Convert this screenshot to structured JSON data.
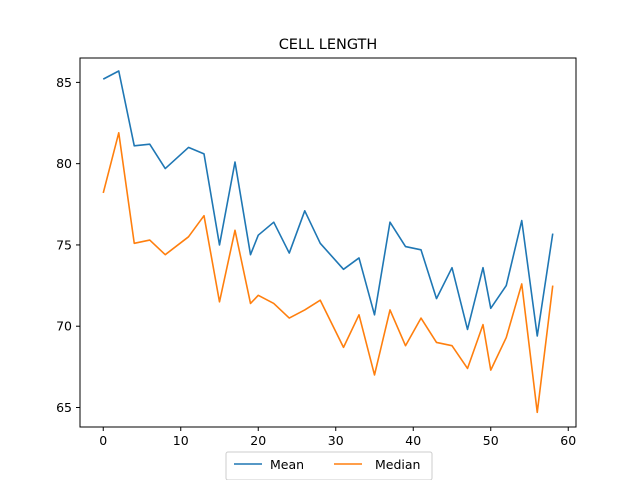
{
  "chart_data": {
    "type": "line",
    "title": "CELL LENGTH",
    "xlabel": "",
    "ylabel": "",
    "xlim": [
      -3,
      61
    ],
    "ylim": [
      63.8,
      86.5
    ],
    "x_ticks": [
      0,
      10,
      20,
      30,
      40,
      50,
      60
    ],
    "y_ticks": [
      65,
      70,
      75,
      80,
      85
    ],
    "grid": false,
    "legend_position": "bottom-center-outside",
    "series": [
      {
        "name": "Mean",
        "color": "#1f77b4",
        "x": [
          0,
          2,
          4,
          6,
          8,
          11,
          13,
          15,
          17,
          19,
          20,
          22,
          24,
          26,
          28,
          31,
          33,
          35,
          37,
          39,
          41,
          43,
          45,
          47,
          49,
          50,
          52,
          54,
          56,
          58
        ],
        "y": [
          85.2,
          85.7,
          81.1,
          81.2,
          79.7,
          81.0,
          80.6,
          75.0,
          80.1,
          74.4,
          75.6,
          76.4,
          74.5,
          77.1,
          75.1,
          73.5,
          74.2,
          70.7,
          76.4,
          74.9,
          74.7,
          71.7,
          73.6,
          69.8,
          73.6,
          71.1,
          72.5,
          76.5,
          69.4,
          75.7
        ]
      },
      {
        "name": "Median",
        "color": "#ff7f0e",
        "x": [
          0,
          2,
          4,
          6,
          8,
          11,
          13,
          15,
          17,
          19,
          20,
          22,
          24,
          26,
          28,
          31,
          33,
          35,
          37,
          39,
          41,
          43,
          45,
          47,
          49,
          50,
          52,
          54,
          56,
          58
        ],
        "y": [
          78.2,
          81.9,
          75.1,
          75.3,
          74.4,
          75.5,
          76.8,
          71.5,
          75.9,
          71.4,
          71.9,
          71.4,
          70.5,
          71.0,
          71.6,
          68.7,
          70.7,
          67.0,
          71.0,
          68.8,
          70.5,
          69.0,
          68.8,
          67.4,
          70.1,
          67.3,
          69.3,
          72.6,
          64.7,
          72.5
        ]
      }
    ]
  }
}
